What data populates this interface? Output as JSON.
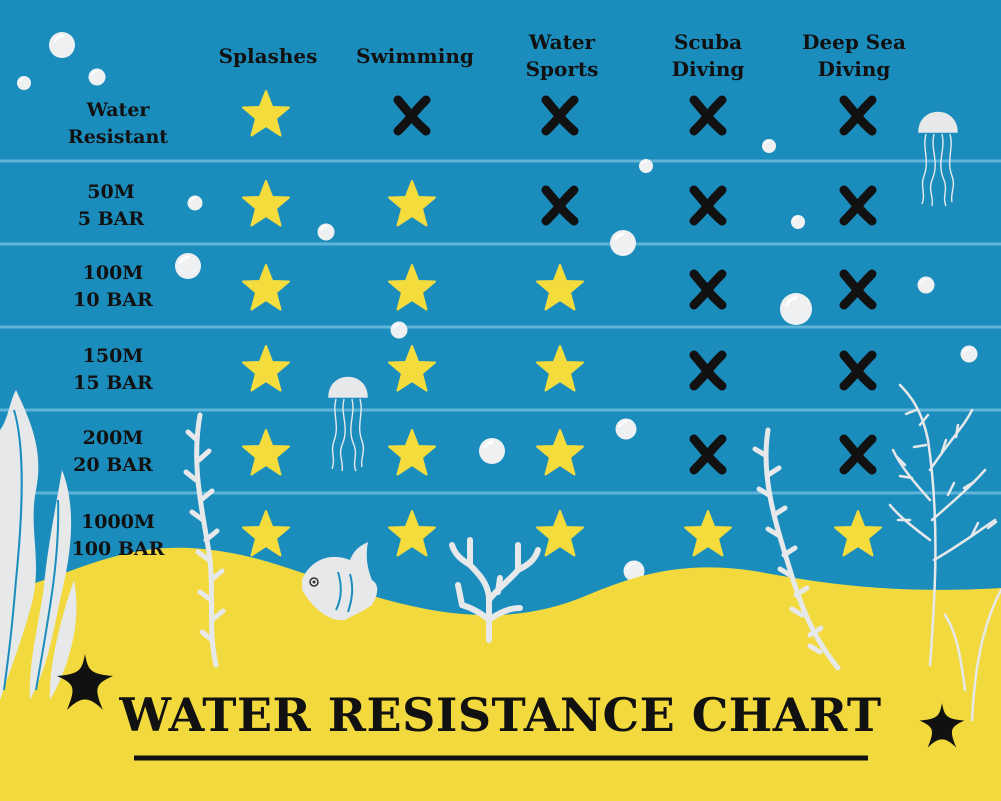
{
  "title": "WATER RESISTANCE CHART",
  "columns": [
    "Splashes",
    "Swimming",
    "Water\nSports",
    "Scuba\nDiving",
    "Deep Sea\nDiving"
  ],
  "rows": [
    {
      "label": "Water\nResistant",
      "values": [
        "star",
        "cross",
        "cross",
        "cross",
        "cross"
      ]
    },
    {
      "label": "50M\n5 BAR",
      "values": [
        "star",
        "star",
        "cross",
        "cross",
        "cross"
      ]
    },
    {
      "label": "100M\n10 BAR",
      "values": [
        "star",
        "star",
        "star",
        "cross",
        "cross"
      ]
    },
    {
      "label": "150M\n15 BAR",
      "values": [
        "star",
        "star",
        "star",
        "cross",
        "cross"
      ]
    },
    {
      "label": "200M\n20 BAR",
      "values": [
        "star",
        "star",
        "star",
        "cross",
        "cross"
      ]
    },
    {
      "label": "1000M\n100 BAR",
      "values": [
        "star",
        "star",
        "star",
        "star",
        "star"
      ]
    }
  ],
  "colors": {
    "water": "#1b8dbd",
    "sand": "#f2da3e",
    "star": "#f4dc3c",
    "cross": "#111111",
    "decor": "#e6e8ea",
    "divider": "#5fb4d8"
  },
  "icons": {
    "available": "star-icon",
    "unavailable": "cross-icon",
    "decor": [
      "bubble-icon",
      "jellyfish-icon",
      "seaweed-icon",
      "coral-icon",
      "fish-icon",
      "starfish-icon"
    ]
  }
}
